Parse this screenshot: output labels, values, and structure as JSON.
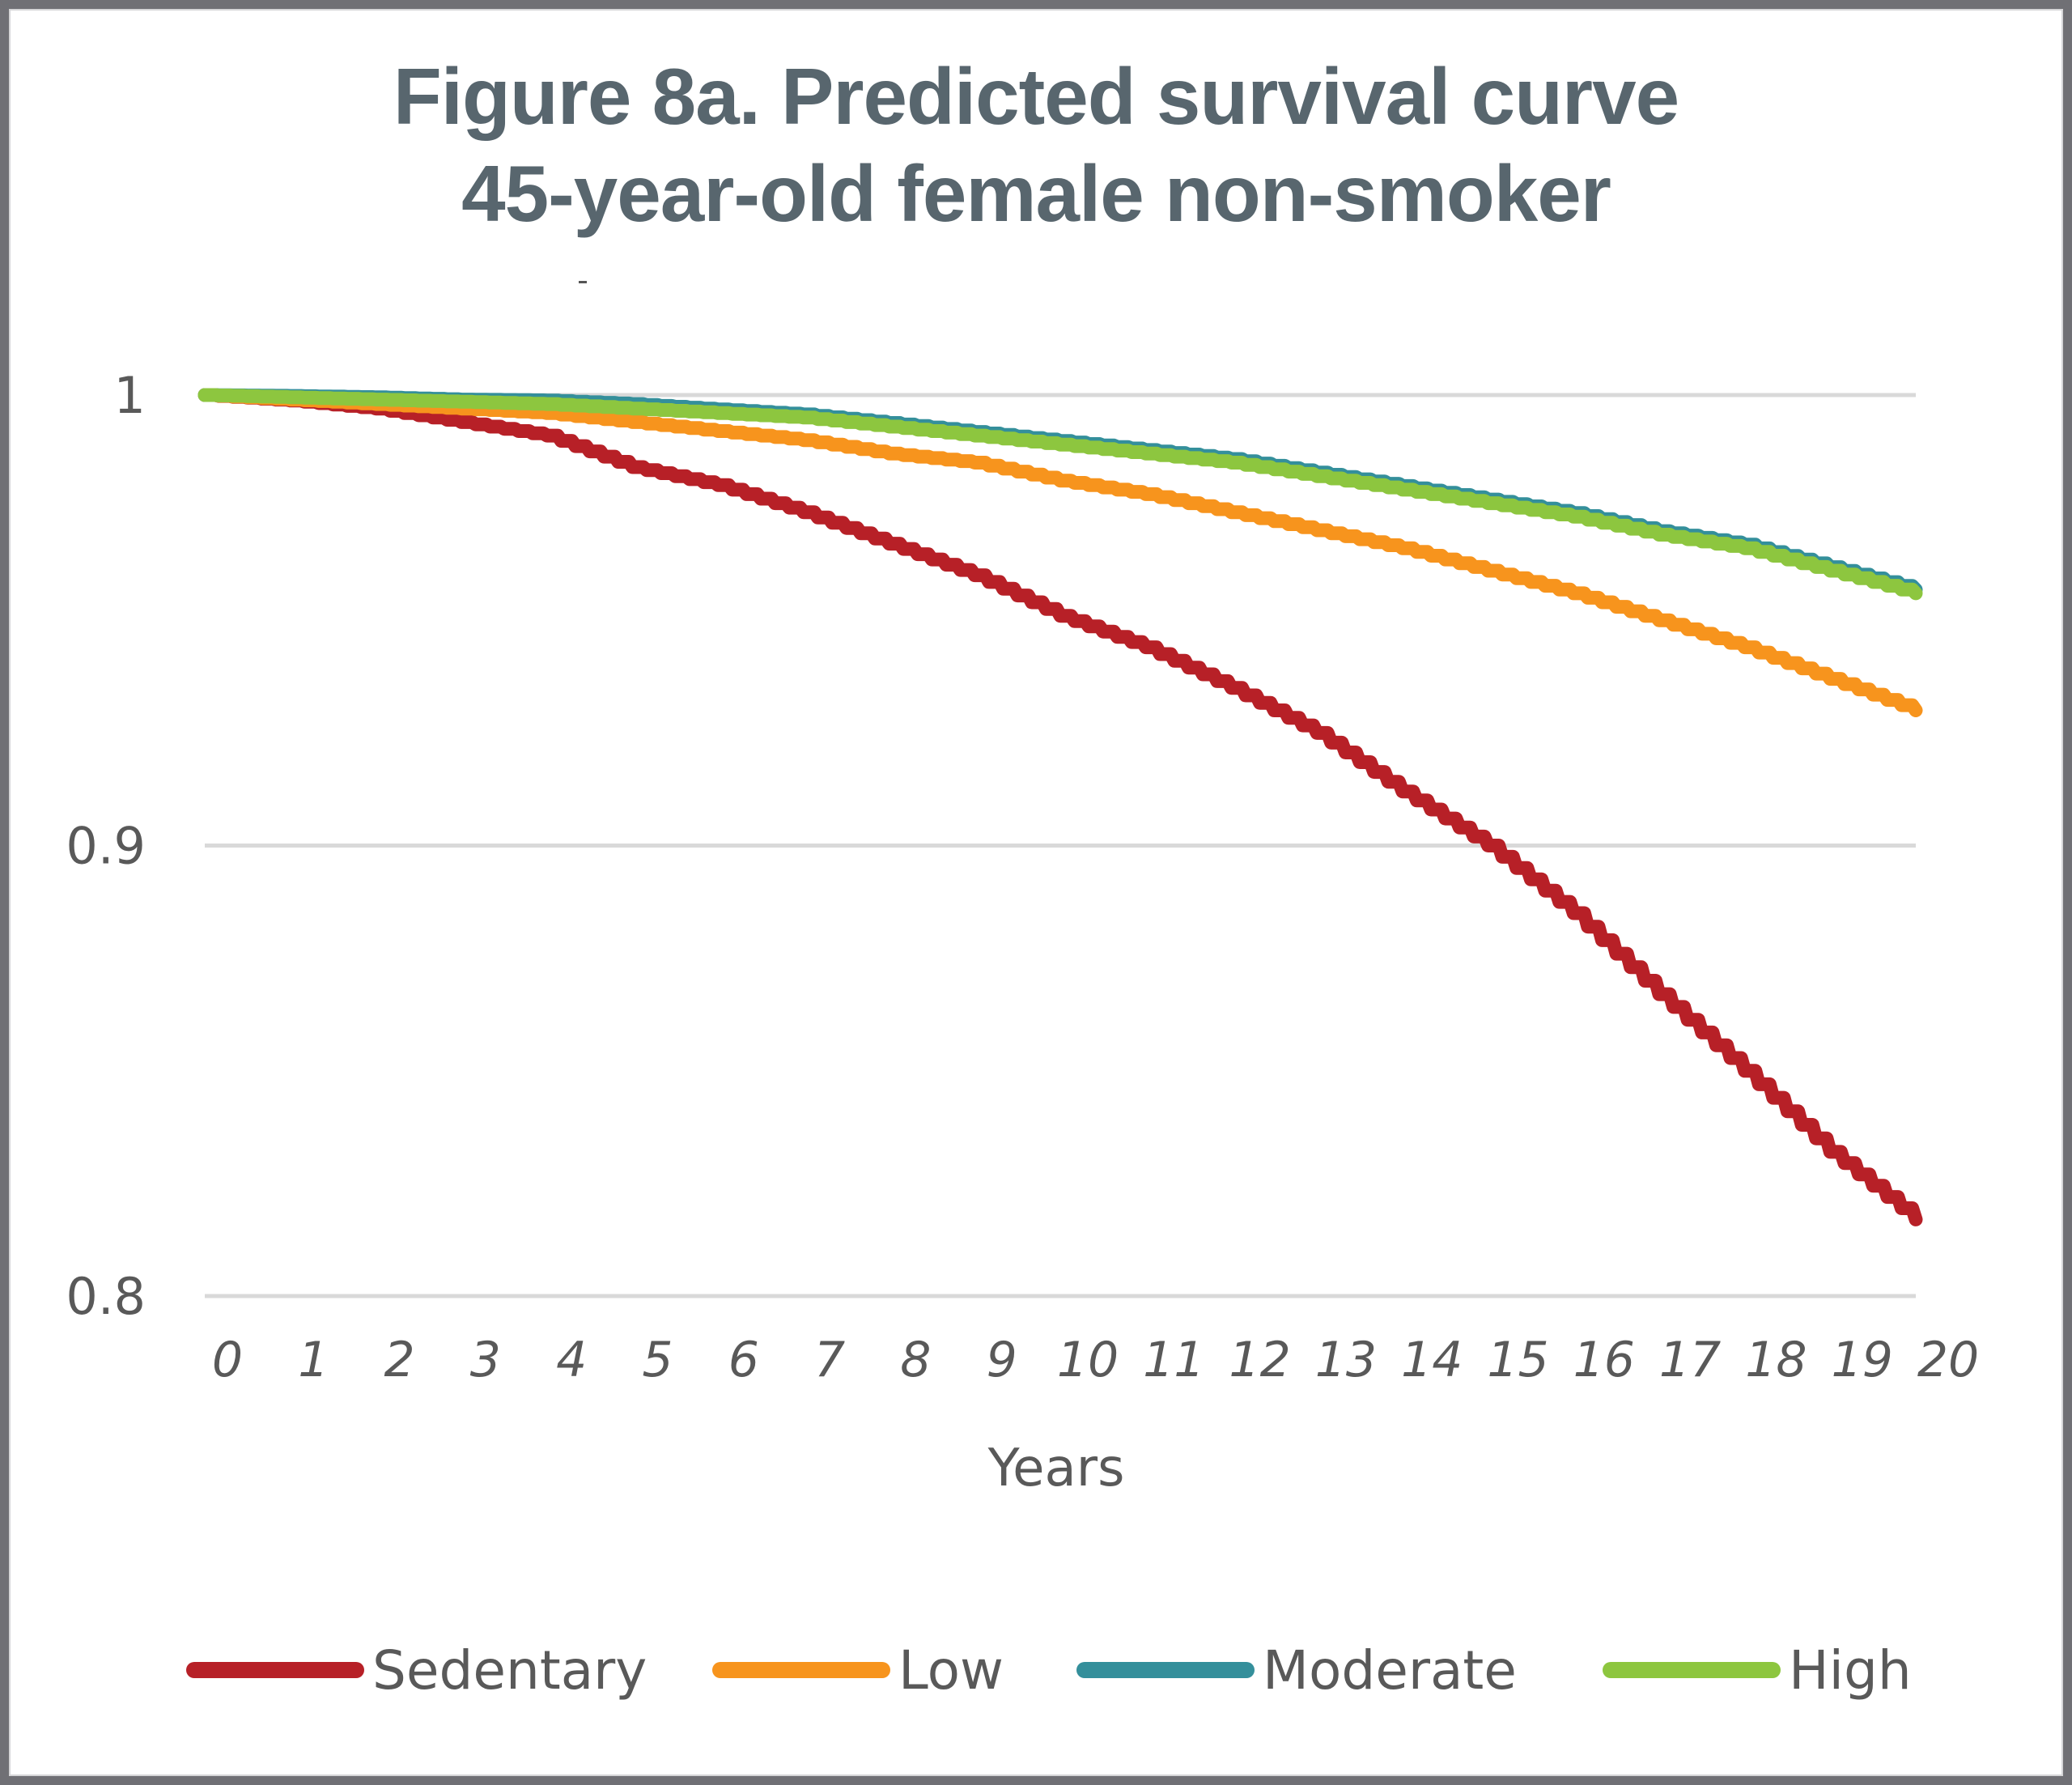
{
  "chart_data": {
    "type": "line",
    "title": "Figure 8a. Predicted survival curve",
    "subtitle": "45-year-old female non-smoker",
    "xlabel": "Years",
    "ylabel": "",
    "xlim": [
      0,
      20
    ],
    "ylim": [
      0.8,
      1.0
    ],
    "yticks": [
      {
        "value": 1.0,
        "label": "1"
      },
      {
        "value": 0.9,
        "label": "0.9"
      },
      {
        "value": 0.8,
        "label": "0.8"
      }
    ],
    "xticks": [
      "0",
      "1",
      "2",
      "3",
      "4",
      "5",
      "6",
      "7",
      "8",
      "9",
      "10",
      "11",
      "12",
      "13",
      "14",
      "15",
      "16",
      "17",
      "18",
      "19",
      "20"
    ],
    "grid": true,
    "legend_position": "bottom",
    "x": [
      0,
      1,
      2,
      3,
      4,
      5,
      6,
      7,
      8,
      9,
      10,
      11,
      12,
      13,
      14,
      15,
      16,
      17,
      18,
      19,
      20
    ],
    "series": [
      {
        "name": "Sedentary",
        "color": "#B72027",
        "values": [
          1.0,
          0.9988,
          0.997,
          0.994,
          0.991,
          0.984,
          0.98,
          0.974,
          0.967,
          0.96,
          0.951,
          0.944,
          0.935,
          0.925,
          0.912,
          0.9,
          0.885,
          0.867,
          0.85,
          0.832,
          0.817
        ]
      },
      {
        "name": "Low",
        "color": "#F7941D",
        "values": [
          1.0,
          0.999,
          0.998,
          0.997,
          0.996,
          0.994,
          0.992,
          0.99,
          0.987,
          0.985,
          0.981,
          0.978,
          0.974,
          0.97,
          0.966,
          0.961,
          0.956,
          0.95,
          0.944,
          0.937,
          0.93
        ]
      },
      {
        "name": "Moderate",
        "color": "#348F9B",
        "values": [
          1.0,
          0.9998,
          0.9995,
          0.999,
          0.9988,
          0.998,
          0.9968,
          0.9957,
          0.9938,
          0.9918,
          0.9898,
          0.9878,
          0.9858,
          0.9828,
          0.9798,
          0.9768,
          0.9738,
          0.9698,
          0.9668,
          0.9618,
          0.9568
        ]
      },
      {
        "name": "High",
        "color": "#8DC63F",
        "values": [
          1.0,
          0.9995,
          0.999,
          0.9985,
          0.998,
          0.997,
          0.996,
          0.995,
          0.993,
          0.991,
          0.989,
          0.987,
          0.985,
          0.982,
          0.979,
          0.976,
          0.973,
          0.969,
          0.966,
          0.961,
          0.956
        ]
      }
    ]
  }
}
